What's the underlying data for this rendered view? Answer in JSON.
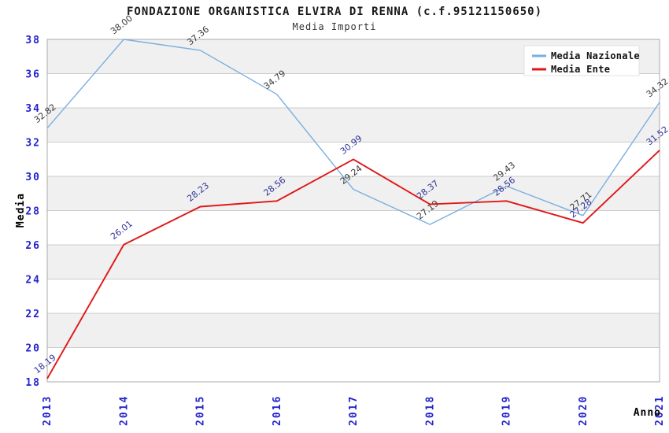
{
  "chart_data": {
    "type": "line",
    "title": "FONDAZIONE ORGANISTICA ELVIRA DI RENNA (c.f.95121150650)",
    "subtitle": "Media Importi",
    "xlabel": "Anno",
    "ylabel": "Media",
    "categories": [
      "2013",
      "2014",
      "2015",
      "2016",
      "2017",
      "2018",
      "2019",
      "2020",
      "2021"
    ],
    "series": [
      {
        "name": "Media Nazionale",
        "color": "#7aaee0",
        "label_color": "#3a3a3a",
        "values": [
          32.82,
          38.0,
          37.36,
          34.79,
          29.24,
          27.19,
          29.43,
          27.71,
          34.32
        ]
      },
      {
        "name": "Media Ente",
        "color": "#e01717",
        "label_color": "#333399",
        "values": [
          18.19,
          26.01,
          28.23,
          28.56,
          30.99,
          28.37,
          28.56,
          27.28,
          31.52
        ]
      }
    ],
    "ylim": [
      18,
      38
    ],
    "ytick_step": 2,
    "yticks": [
      18,
      20,
      22,
      24,
      26,
      28,
      30,
      32,
      34,
      36,
      38
    ],
    "grid": true,
    "band_colors": [
      "#f0f0f0",
      "#ffffff"
    ],
    "gridline_color": "#cccccc",
    "frame_color": "#aaaaaa",
    "axis_text_color": "#2222cc",
    "legend_position": "top-right",
    "legend_background": "#ffffff"
  }
}
